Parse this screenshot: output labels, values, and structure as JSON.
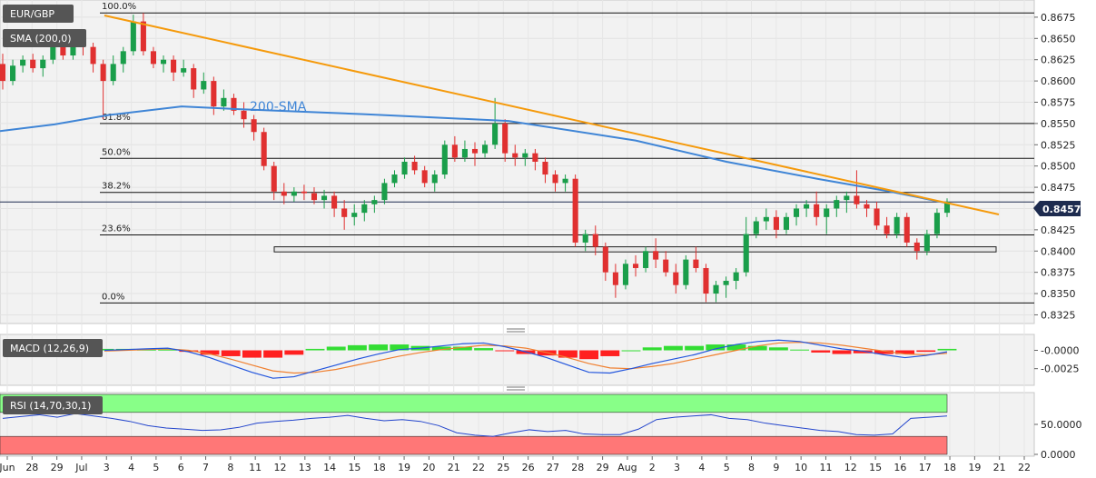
{
  "symbol_badge": "EUR/GBP",
  "indicator_badge": "SMA (200,0)",
  "macd_badge": "MACD (12,26,9)",
  "rsi_badge": "RSI (14,70,30,1)",
  "sma_label": "200-SMA",
  "current_price": "0.84577",
  "colors": {
    "up_candle": "#1a9e4a",
    "down_candle": "#e03030",
    "sma": "#3f85d6",
    "trendline": "#f59a0c",
    "macd_pos_hist": "#33dd33",
    "macd_neg_hist": "#ff2020",
    "macd_line": "#2255dd",
    "signal_line": "#f08030",
    "rsi_line": "#2244cc",
    "rsi_overbought": "#88ff88",
    "rsi_oversold": "#ff7777",
    "price_box": "#1d2b4f"
  },
  "chart_data": [
    {
      "type": "candlestick",
      "title": "EUR/GBP",
      "x_ticks": [
        "Jun",
        "28",
        "29",
        "Jul",
        "3",
        "4",
        "5",
        "6",
        "7",
        "8",
        "11",
        "12",
        "13",
        "14",
        "15",
        "18",
        "19",
        "20",
        "21",
        "22",
        "25",
        "26",
        "27",
        "28",
        "29",
        "Aug",
        "2",
        "3",
        "4",
        "5",
        "8",
        "9",
        "10",
        "11",
        "12",
        "15",
        "16",
        "17",
        "18",
        "19",
        "21",
        "22"
      ],
      "y_ticks": [
        "0.8675",
        "0.8650",
        "0.8625",
        "0.8600",
        "0.8575",
        "0.8550",
        "0.8525",
        "0.8500",
        "0.8475",
        "0.8450",
        "0.8425",
        "0.8400",
        "0.8375",
        "0.8350",
        "0.8325"
      ],
      "ylim": [
        0.8318,
        0.8692
      ],
      "last_price": 0.84577,
      "support_zone": [
        0.8399,
        0.8405
      ],
      "fibonacci_levels": [
        {
          "label": "100.0%",
          "value": 0.868
        },
        {
          "label": "61.8%",
          "value": 0.855
        },
        {
          "label": "50.0%",
          "value": 0.8509
        },
        {
          "label": "38.2%",
          "value": 0.8469
        },
        {
          "label": "23.6%",
          "value": 0.8419
        },
        {
          "label": "0.0%",
          "value": 0.8339
        }
      ],
      "sma_200": {
        "label": "200-SMA",
        "x": [
          0,
          60,
          120,
          200,
          260,
          400,
          560,
          700,
          800,
          900,
          980,
          1040
        ],
        "y": [
          0.8541,
          0.8549,
          0.856,
          0.857,
          0.8567,
          0.8561,
          0.8553,
          0.853,
          0.8505,
          0.8485,
          0.847,
          0.8457
        ]
      },
      "trendline": {
        "x": [
          115,
          1100
        ],
        "y": [
          0.8677,
          0.8443
        ]
      },
      "ohlc": [
        [
          0.862,
          0.8632,
          0.859,
          0.86
        ],
        [
          0.86,
          0.8625,
          0.8595,
          0.8618
        ],
        [
          0.8618,
          0.863,
          0.861,
          0.8625
        ],
        [
          0.8625,
          0.8632,
          0.861,
          0.8615
        ],
        [
          0.8615,
          0.863,
          0.8605,
          0.8625
        ],
        [
          0.8625,
          0.8645,
          0.862,
          0.864
        ],
        [
          0.864,
          0.865,
          0.8625,
          0.863
        ],
        [
          0.863,
          0.865,
          0.8625,
          0.8645
        ],
        [
          0.8645,
          0.866,
          0.863,
          0.864
        ],
        [
          0.864,
          0.8645,
          0.861,
          0.862
        ],
        [
          0.862,
          0.8625,
          0.8555,
          0.86
        ],
        [
          0.86,
          0.863,
          0.8595,
          0.862
        ],
        [
          0.862,
          0.864,
          0.861,
          0.8635
        ],
        [
          0.8635,
          0.8678,
          0.863,
          0.867
        ],
        [
          0.867,
          0.868,
          0.863,
          0.8635
        ],
        [
          0.8635,
          0.864,
          0.8615,
          0.862
        ],
        [
          0.862,
          0.863,
          0.861,
          0.8625
        ],
        [
          0.8625,
          0.863,
          0.86,
          0.861
        ],
        [
          0.861,
          0.8625,
          0.8605,
          0.8615
        ],
        [
          0.8615,
          0.862,
          0.858,
          0.859
        ],
        [
          0.859,
          0.861,
          0.8585,
          0.86
        ],
        [
          0.86,
          0.8605,
          0.856,
          0.857
        ],
        [
          0.857,
          0.859,
          0.8565,
          0.858
        ],
        [
          0.858,
          0.8585,
          0.856,
          0.8565
        ],
        [
          0.8565,
          0.8575,
          0.8545,
          0.8555
        ],
        [
          0.8555,
          0.856,
          0.853,
          0.854
        ],
        [
          0.854,
          0.8545,
          0.8495,
          0.85
        ],
        [
          0.85,
          0.8505,
          0.846,
          0.847
        ],
        [
          0.847,
          0.848,
          0.8455,
          0.8465
        ],
        [
          0.8465,
          0.8475,
          0.8458,
          0.847
        ],
        [
          0.847,
          0.8478,
          0.846,
          0.8468
        ],
        [
          0.8468,
          0.8475,
          0.8455,
          0.846
        ],
        [
          0.846,
          0.8472,
          0.845,
          0.8465
        ],
        [
          0.8465,
          0.847,
          0.844,
          0.845
        ],
        [
          0.845,
          0.846,
          0.8425,
          0.844
        ],
        [
          0.844,
          0.8455,
          0.843,
          0.8445
        ],
        [
          0.8445,
          0.846,
          0.8435,
          0.8455
        ],
        [
          0.8455,
          0.8465,
          0.8445,
          0.846
        ],
        [
          0.846,
          0.8485,
          0.8455,
          0.848
        ],
        [
          0.848,
          0.8495,
          0.8475,
          0.849
        ],
        [
          0.849,
          0.851,
          0.8485,
          0.8505
        ],
        [
          0.8505,
          0.8512,
          0.849,
          0.8495
        ],
        [
          0.8495,
          0.85,
          0.8475,
          0.848
        ],
        [
          0.848,
          0.8495,
          0.847,
          0.849
        ],
        [
          0.849,
          0.853,
          0.8485,
          0.8525
        ],
        [
          0.8525,
          0.8535,
          0.8505,
          0.851
        ],
        [
          0.851,
          0.853,
          0.8505,
          0.852
        ],
        [
          0.852,
          0.8528,
          0.85,
          0.8515
        ],
        [
          0.8515,
          0.853,
          0.851,
          0.8525
        ],
        [
          0.8525,
          0.858,
          0.852,
          0.855
        ],
        [
          0.855,
          0.8555,
          0.8505,
          0.8515
        ],
        [
          0.8515,
          0.8525,
          0.85,
          0.851
        ],
        [
          0.851,
          0.852,
          0.85,
          0.8515
        ],
        [
          0.8515,
          0.852,
          0.8495,
          0.8505
        ],
        [
          0.8505,
          0.851,
          0.848,
          0.849
        ],
        [
          0.849,
          0.8495,
          0.847,
          0.848
        ],
        [
          0.848,
          0.849,
          0.847,
          0.8485
        ],
        [
          0.8485,
          0.849,
          0.8405,
          0.841
        ],
        [
          0.841,
          0.8425,
          0.84,
          0.842
        ],
        [
          0.842,
          0.843,
          0.8395,
          0.8405
        ],
        [
          0.8405,
          0.841,
          0.8365,
          0.8375
        ],
        [
          0.8375,
          0.8385,
          0.8345,
          0.836
        ],
        [
          0.836,
          0.839,
          0.8355,
          0.8385
        ],
        [
          0.8385,
          0.8395,
          0.837,
          0.838
        ],
        [
          0.838,
          0.8405,
          0.8375,
          0.84
        ],
        [
          0.84,
          0.8415,
          0.838,
          0.839
        ],
        [
          0.839,
          0.84,
          0.837,
          0.8375
        ],
        [
          0.8375,
          0.8385,
          0.835,
          0.836
        ],
        [
          0.836,
          0.8395,
          0.8355,
          0.839
        ],
        [
          0.839,
          0.8405,
          0.8375,
          0.838
        ],
        [
          0.838,
          0.8385,
          0.834,
          0.835
        ],
        [
          0.835,
          0.8365,
          0.834,
          0.836
        ],
        [
          0.836,
          0.837,
          0.8345,
          0.8365
        ],
        [
          0.8365,
          0.838,
          0.8355,
          0.8375
        ],
        [
          0.8375,
          0.844,
          0.837,
          0.842
        ],
        [
          0.842,
          0.844,
          0.8415,
          0.8435
        ],
        [
          0.8435,
          0.845,
          0.8425,
          0.844
        ],
        [
          0.844,
          0.8448,
          0.8415,
          0.8425
        ],
        [
          0.8425,
          0.8445,
          0.842,
          0.844
        ],
        [
          0.844,
          0.8455,
          0.843,
          0.845
        ],
        [
          0.845,
          0.846,
          0.844,
          0.8455
        ],
        [
          0.8455,
          0.847,
          0.843,
          0.844
        ],
        [
          0.844,
          0.8455,
          0.842,
          0.845
        ],
        [
          0.845,
          0.8465,
          0.844,
          0.846
        ],
        [
          0.846,
          0.847,
          0.8445,
          0.8465
        ],
        [
          0.8465,
          0.8495,
          0.845,
          0.8455
        ],
        [
          0.8455,
          0.846,
          0.844,
          0.845
        ],
        [
          0.845,
          0.8458,
          0.8425,
          0.843
        ],
        [
          0.843,
          0.844,
          0.8415,
          0.842
        ],
        [
          0.842,
          0.8445,
          0.8415,
          0.844
        ],
        [
          0.844,
          0.8445,
          0.8405,
          0.841
        ],
        [
          0.841,
          0.8415,
          0.839,
          0.84
        ],
        [
          0.84,
          0.8425,
          0.8395,
          0.842
        ],
        [
          0.842,
          0.845,
          0.8415,
          0.8445
        ],
        [
          0.8445,
          0.8462,
          0.844,
          0.8458
        ]
      ]
    },
    {
      "type": "bar+line",
      "title": "MACD (12,26,9)",
      "y_ticks": [
        "-0.0000",
        "-0.0025"
      ],
      "ylim": [
        -0.0044,
        0.0018
      ],
      "series": [
        {
          "name": "MACD",
          "values": [
            0.0,
            0.0001,
            0.0002,
            0.0003,
            -0.0002,
            -0.001,
            -0.002,
            -0.003,
            -0.0038,
            -0.0036,
            -0.0028,
            -0.002,
            -0.0012,
            -0.0005,
            0.0001,
            0.0003,
            0.0006,
            0.0009,
            0.001,
            0.0005,
            -0.0002,
            -0.001,
            -0.002,
            -0.003,
            -0.0031,
            -0.0025,
            -0.0018,
            -0.0012,
            -0.0006,
            0.0002,
            0.0008,
            0.0012,
            0.0014,
            0.0012,
            0.0007,
            0.0002,
            -0.0001,
            -0.0006,
            -0.001,
            -0.0007,
            -0.0002
          ]
        },
        {
          "name": "Signal",
          "values": [
            -0.0001,
            0.0,
            0.0001,
            0.0002,
            0.0,
            -0.0005,
            -0.0012,
            -0.002,
            -0.0028,
            -0.0031,
            -0.003,
            -0.0026,
            -0.002,
            -0.0014,
            -0.0008,
            -0.0003,
            0.0001,
            0.0004,
            0.0007,
            0.0006,
            0.0003,
            -0.0003,
            -0.001,
            -0.0018,
            -0.0024,
            -0.0025,
            -0.0022,
            -0.0018,
            -0.0012,
            -0.0006,
            0.0,
            0.0006,
            0.001,
            0.0011,
            0.001,
            0.0007,
            0.0003,
            -0.0001,
            -0.0005,
            -0.0006,
            -0.0004
          ]
        },
        {
          "name": "Histogram",
          "values": [
            0.0002,
            0.0002,
            0.0001,
            0.0001,
            -0.0002,
            -0.0006,
            -0.0008,
            -0.001,
            -0.001,
            -0.0006,
            0.0002,
            0.0005,
            0.0007,
            0.0008,
            0.0008,
            0.0006,
            0.0005,
            0.0005,
            0.0003,
            -0.0001,
            -0.0005,
            -0.0007,
            -0.001,
            -0.0012,
            -0.0008,
            0.0,
            0.0004,
            0.0006,
            0.0006,
            0.0008,
            0.0008,
            0.0006,
            0.0004,
            0.0001,
            -0.0003,
            -0.0005,
            -0.0004,
            -0.0005,
            -0.0005,
            -0.0002,
            0.0002
          ]
        }
      ]
    },
    {
      "type": "line",
      "title": "RSI (14,70,30,1)",
      "y_ticks": [
        "50.0000",
        "0.0000"
      ],
      "ylim": [
        0,
        100
      ],
      "overbought": 70,
      "oversold": 30,
      "series": [
        {
          "name": "RSI",
          "values": [
            60,
            63,
            66,
            62,
            68,
            64,
            60,
            55,
            48,
            44,
            42,
            40,
            41,
            45,
            52,
            55,
            57,
            60,
            62,
            65,
            60,
            56,
            58,
            55,
            48,
            36,
            32,
            30,
            36,
            41,
            38,
            40,
            34,
            33,
            33,
            42,
            58,
            62,
            64,
            66,
            60,
            58,
            52,
            48,
            44,
            40,
            38,
            33,
            32,
            34,
            60,
            62,
            64
          ]
        }
      ]
    }
  ]
}
